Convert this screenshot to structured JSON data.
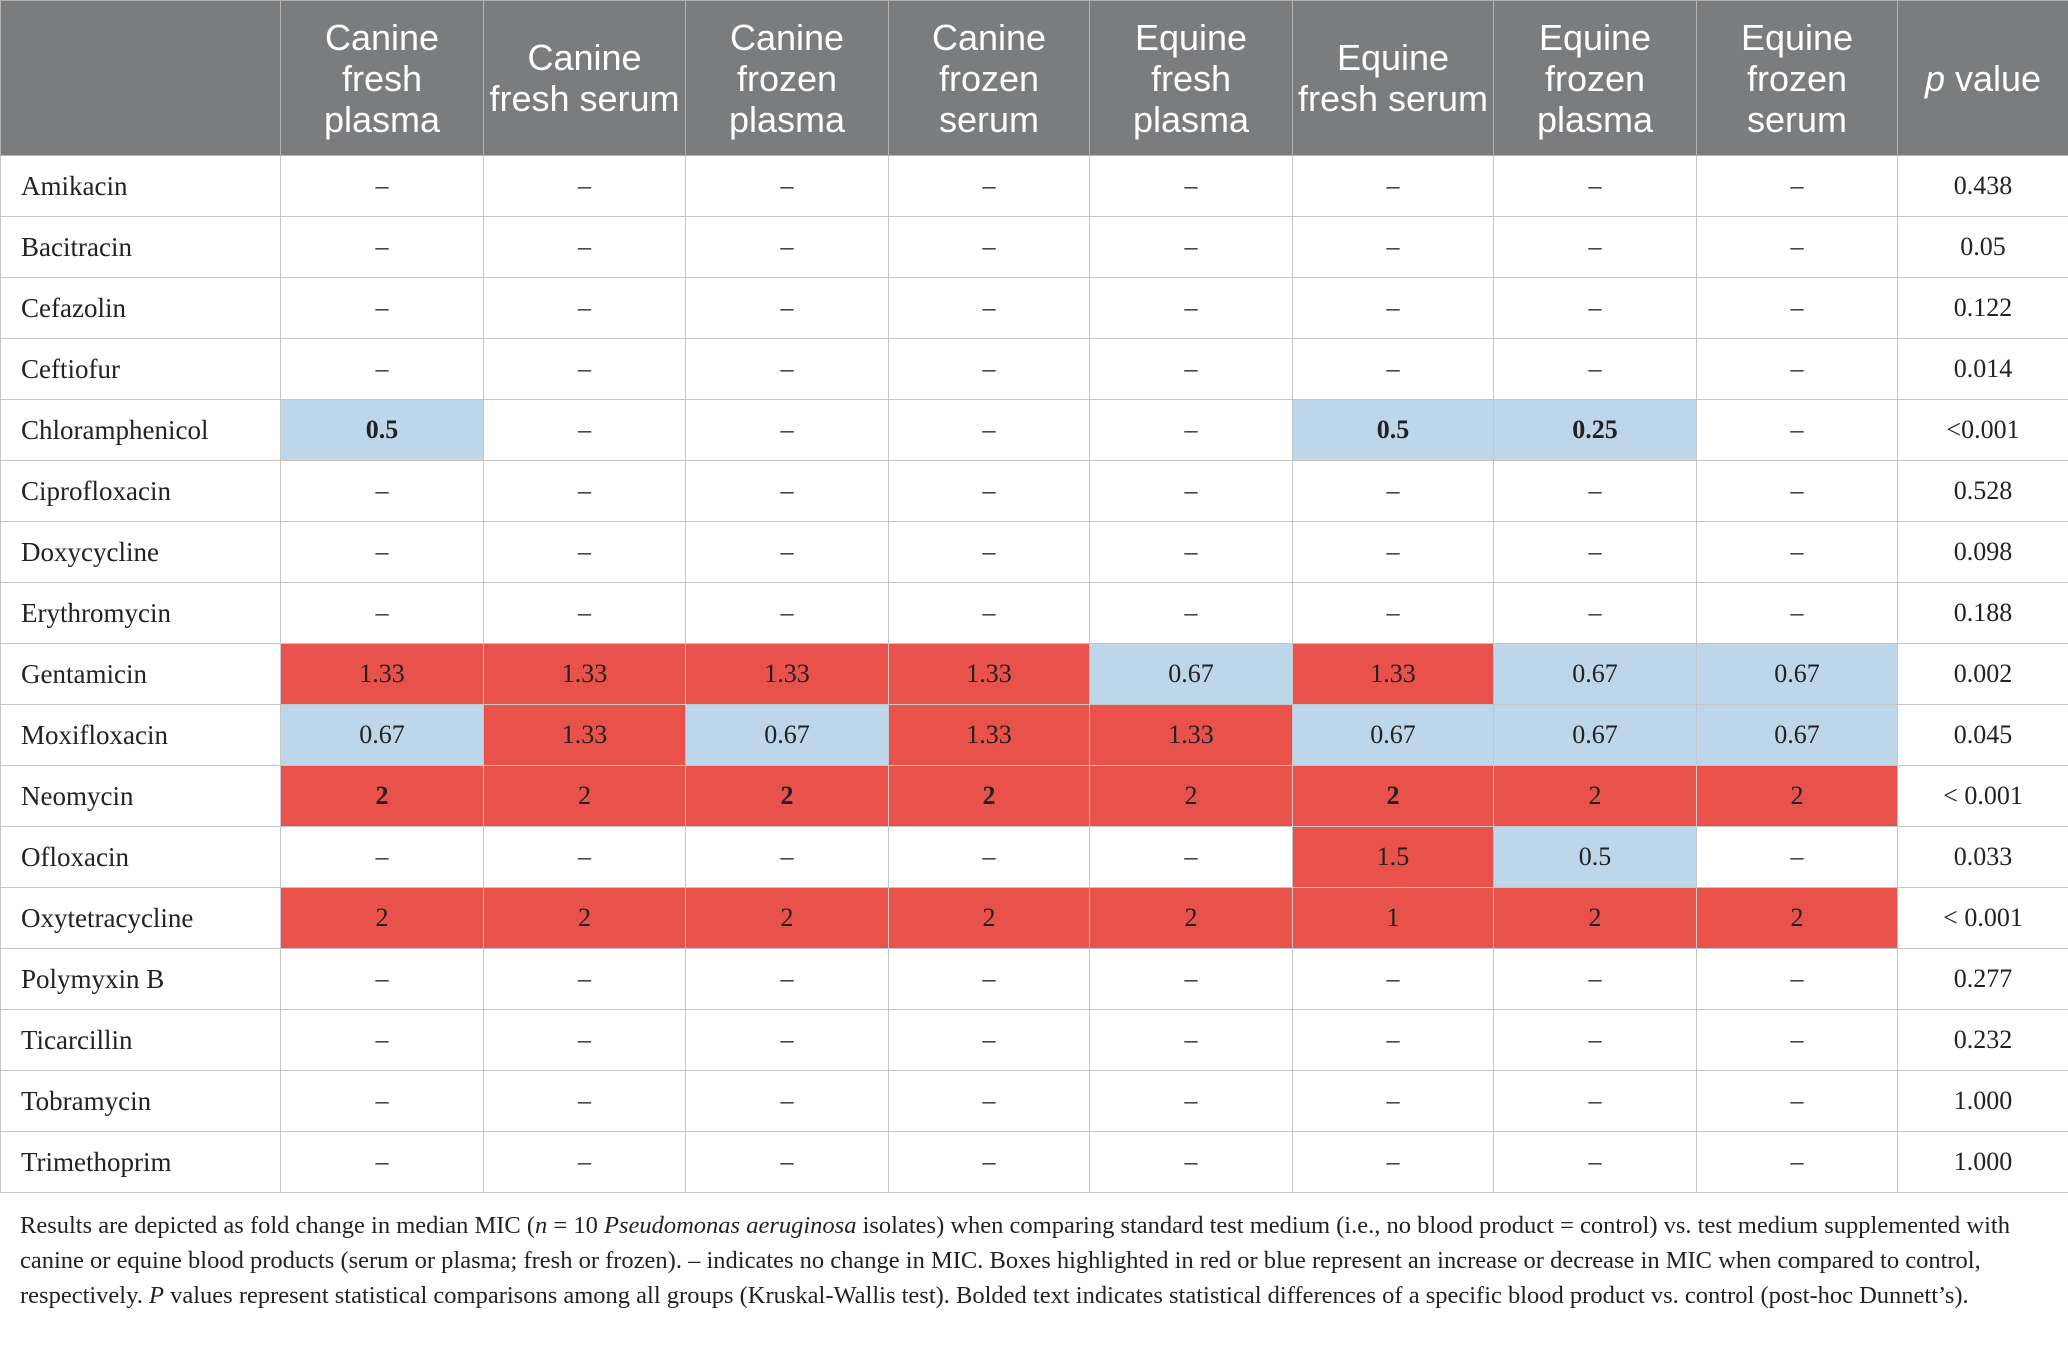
{
  "header": {
    "columns": [
      "Canine fresh plasma",
      "Canine fresh serum",
      "Canine frozen plasma",
      "Canine frozen serum",
      "Equine fresh plasma",
      "Equine fresh serum",
      "Equine frozen plasma",
      "Equine frozen serum"
    ],
    "p_label_italic": "p",
    "p_label_rest": " value"
  },
  "colors": {
    "increase": "#e9524a",
    "decrease": "#bed6ea",
    "header_bg": "#7b7c7d"
  },
  "rows": [
    {
      "drug": "Amikacin",
      "cells": [
        {
          "v": "–"
        },
        {
          "v": "–"
        },
        {
          "v": "–"
        },
        {
          "v": "–"
        },
        {
          "v": "–"
        },
        {
          "v": "–"
        },
        {
          "v": "–"
        },
        {
          "v": "–"
        }
      ],
      "p": "0.438"
    },
    {
      "drug": "Bacitracin",
      "cells": [
        {
          "v": "–"
        },
        {
          "v": "–"
        },
        {
          "v": "–"
        },
        {
          "v": "–"
        },
        {
          "v": "–"
        },
        {
          "v": "–"
        },
        {
          "v": "–"
        },
        {
          "v": "–"
        }
      ],
      "p": "0.05"
    },
    {
      "drug": "Cefazolin",
      "cells": [
        {
          "v": "–"
        },
        {
          "v": "–"
        },
        {
          "v": "–"
        },
        {
          "v": "–"
        },
        {
          "v": "–"
        },
        {
          "v": "–"
        },
        {
          "v": "–"
        },
        {
          "v": "–"
        }
      ],
      "p": "0.122"
    },
    {
      "drug": "Ceftiofur",
      "cells": [
        {
          "v": "–"
        },
        {
          "v": "–"
        },
        {
          "v": "–"
        },
        {
          "v": "–"
        },
        {
          "v": "–"
        },
        {
          "v": "–"
        },
        {
          "v": "–"
        },
        {
          "v": "–"
        }
      ],
      "p": "0.014"
    },
    {
      "drug": "Chloramphenicol",
      "cells": [
        {
          "v": "0.5",
          "c": "blue",
          "b": true
        },
        {
          "v": "–"
        },
        {
          "v": "–"
        },
        {
          "v": "–"
        },
        {
          "v": "–"
        },
        {
          "v": "0.5",
          "c": "blue",
          "b": true
        },
        {
          "v": "0.25",
          "c": "blue",
          "b": true
        },
        {
          "v": "–"
        }
      ],
      "p": "<0.001"
    },
    {
      "drug": "Ciprofloxacin",
      "cells": [
        {
          "v": "–"
        },
        {
          "v": "–"
        },
        {
          "v": "–"
        },
        {
          "v": "–"
        },
        {
          "v": "–"
        },
        {
          "v": "–"
        },
        {
          "v": "–"
        },
        {
          "v": "–"
        }
      ],
      "p": "0.528"
    },
    {
      "drug": "Doxycycline",
      "cells": [
        {
          "v": "–"
        },
        {
          "v": "–"
        },
        {
          "v": "–"
        },
        {
          "v": "–"
        },
        {
          "v": "–"
        },
        {
          "v": "–"
        },
        {
          "v": "–"
        },
        {
          "v": "–"
        }
      ],
      "p": "0.098"
    },
    {
      "drug": "Erythromycin",
      "cells": [
        {
          "v": "–"
        },
        {
          "v": "–"
        },
        {
          "v": "–"
        },
        {
          "v": "–"
        },
        {
          "v": "–"
        },
        {
          "v": "–"
        },
        {
          "v": "–"
        },
        {
          "v": "–"
        }
      ],
      "p": "0.188"
    },
    {
      "drug": "Gentamicin",
      "cells": [
        {
          "v": "1.33",
          "c": "red"
        },
        {
          "v": "1.33",
          "c": "red"
        },
        {
          "v": "1.33",
          "c": "red"
        },
        {
          "v": "1.33",
          "c": "red"
        },
        {
          "v": "0.67",
          "c": "blue"
        },
        {
          "v": "1.33",
          "c": "red"
        },
        {
          "v": "0.67",
          "c": "blue"
        },
        {
          "v": "0.67",
          "c": "blue"
        }
      ],
      "p": "0.002"
    },
    {
      "drug": "Moxifloxacin",
      "cells": [
        {
          "v": "0.67",
          "c": "blue"
        },
        {
          "v": "1.33",
          "c": "red"
        },
        {
          "v": "0.67",
          "c": "blue"
        },
        {
          "v": "1.33",
          "c": "red"
        },
        {
          "v": "1.33",
          "c": "red"
        },
        {
          "v": "0.67",
          "c": "blue"
        },
        {
          "v": "0.67",
          "c": "blue"
        },
        {
          "v": "0.67",
          "c": "blue"
        }
      ],
      "p": "0.045"
    },
    {
      "drug": "Neomycin",
      "cells": [
        {
          "v": "2",
          "c": "red",
          "b": true
        },
        {
          "v": "2",
          "c": "red"
        },
        {
          "v": "2",
          "c": "red",
          "b": true
        },
        {
          "v": "2",
          "c": "red",
          "b": true
        },
        {
          "v": "2",
          "c": "red"
        },
        {
          "v": "2",
          "c": "red",
          "b": true
        },
        {
          "v": "2",
          "c": "red"
        },
        {
          "v": "2",
          "c": "red"
        }
      ],
      "p": "< 0.001"
    },
    {
      "drug": "Ofloxacin",
      "cells": [
        {
          "v": "–"
        },
        {
          "v": "–"
        },
        {
          "v": "–"
        },
        {
          "v": "–"
        },
        {
          "v": "–"
        },
        {
          "v": "1.5",
          "c": "red"
        },
        {
          "v": "0.5",
          "c": "blue"
        },
        {
          "v": "–"
        }
      ],
      "p": "0.033"
    },
    {
      "drug": "Oxytetracycline",
      "cells": [
        {
          "v": "2",
          "c": "red"
        },
        {
          "v": "2",
          "c": "red"
        },
        {
          "v": "2",
          "c": "red"
        },
        {
          "v": "2",
          "c": "red"
        },
        {
          "v": "2",
          "c": "red"
        },
        {
          "v": "1",
          "c": "red"
        },
        {
          "v": "2",
          "c": "red"
        },
        {
          "v": "2",
          "c": "red"
        }
      ],
      "p": "< 0.001"
    },
    {
      "drug": "Polymyxin B",
      "cells": [
        {
          "v": "–"
        },
        {
          "v": "–"
        },
        {
          "v": "–"
        },
        {
          "v": "–"
        },
        {
          "v": "–"
        },
        {
          "v": "–"
        },
        {
          "v": "–"
        },
        {
          "v": "–"
        }
      ],
      "p": "0.277"
    },
    {
      "drug": "Ticarcillin",
      "cells": [
        {
          "v": "–"
        },
        {
          "v": "–"
        },
        {
          "v": "–"
        },
        {
          "v": "–"
        },
        {
          "v": "–"
        },
        {
          "v": "–"
        },
        {
          "v": "–"
        },
        {
          "v": "–"
        }
      ],
      "p": "0.232"
    },
    {
      "drug": "Tobramycin",
      "cells": [
        {
          "v": "–"
        },
        {
          "v": "–"
        },
        {
          "v": "–"
        },
        {
          "v": "–"
        },
        {
          "v": "–"
        },
        {
          "v": "–"
        },
        {
          "v": "–"
        },
        {
          "v": "–"
        }
      ],
      "p": "1.000"
    },
    {
      "drug": "Trimethoprim",
      "cells": [
        {
          "v": "–"
        },
        {
          "v": "–"
        },
        {
          "v": "–"
        },
        {
          "v": "–"
        },
        {
          "v": "–"
        },
        {
          "v": "–"
        },
        {
          "v": "–"
        },
        {
          "v": "–"
        }
      ],
      "p": "1.000"
    }
  ],
  "footnote": {
    "p1": "Results are depicted as fold change in median MIC (",
    "n_italic": "n",
    "p2": " = 10 ",
    "species_italic": "Pseudomonas aeruginosa",
    "p3": " isolates) when comparing standard test medium (i.e., no blood product = control) vs. test medium supplemented with canine or equine blood products (serum or plasma; fresh or frozen). – indicates no change in MIC. Boxes highlighted in red or blue represent an increase or decrease in MIC when compared to control, respectively. ",
    "P_italic": "P",
    "p4": " values represent statistical comparisons among all groups (Kruskal-Wallis test). Bolded text indicates statistical differences of a specific blood product vs. control (post-hoc Dunnett’s)."
  }
}
